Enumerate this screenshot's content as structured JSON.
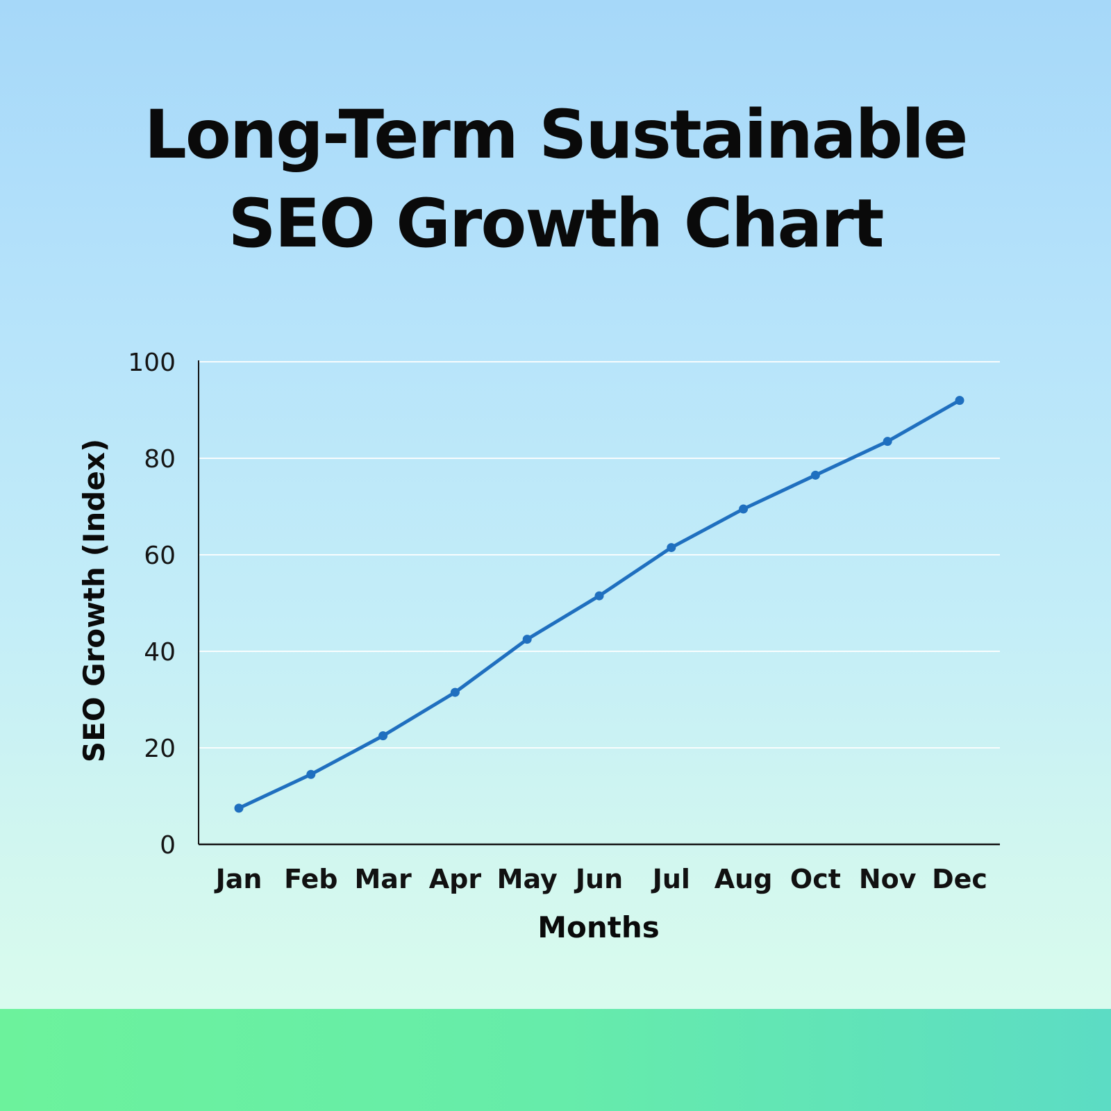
{
  "title_line1": "Long-Term Sustainable",
  "title_line2": "SEO Growth Chart",
  "colors": {
    "line": "#1f6fbf",
    "axis": "#111111",
    "grid": "#ffffff",
    "band": "#66ecaa"
  },
  "chart_data": {
    "type": "line",
    "title": "Long-Term Sustainable SEO Growth Chart",
    "xlabel": "Months",
    "ylabel": "SEO Growth (Index)",
    "categories": [
      "Jan",
      "Feb",
      "Mar",
      "Apr",
      "May",
      "Jun",
      "Jul",
      "Aug",
      "Oct",
      "Nov",
      "Dec"
    ],
    "series": [
      {
        "values": [
          7.5,
          14.5,
          22.5,
          31.5,
          42.5,
          51.5,
          61.5,
          69.5,
          76.5,
          83.5,
          92
        ]
      }
    ],
    "ylim": [
      0,
      100
    ],
    "yticks": [
      0,
      20,
      40,
      60,
      80,
      100
    ],
    "grid": true,
    "legend": "none"
  }
}
